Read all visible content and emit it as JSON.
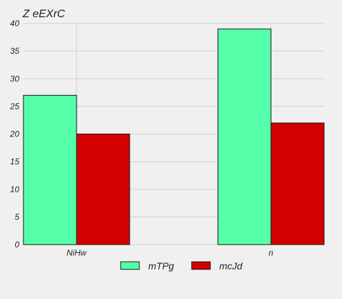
{
  "chart_data": {
    "type": "bar",
    "title": "Z eEXrC",
    "categories": [
      "NiHw",
      "n"
    ],
    "series": [
      {
        "name": "mTPg",
        "values": [
          27,
          39
        ],
        "color": "#55ffa9"
      },
      {
        "name": "mcJd",
        "values": [
          20,
          22
        ],
        "color": "#d40000"
      }
    ],
    "ylim": [
      0,
      40
    ],
    "yticks": [
      0,
      5,
      10,
      15,
      20,
      25,
      30,
      35,
      40
    ],
    "grid": true,
    "legend_position": "bottom-center"
  }
}
